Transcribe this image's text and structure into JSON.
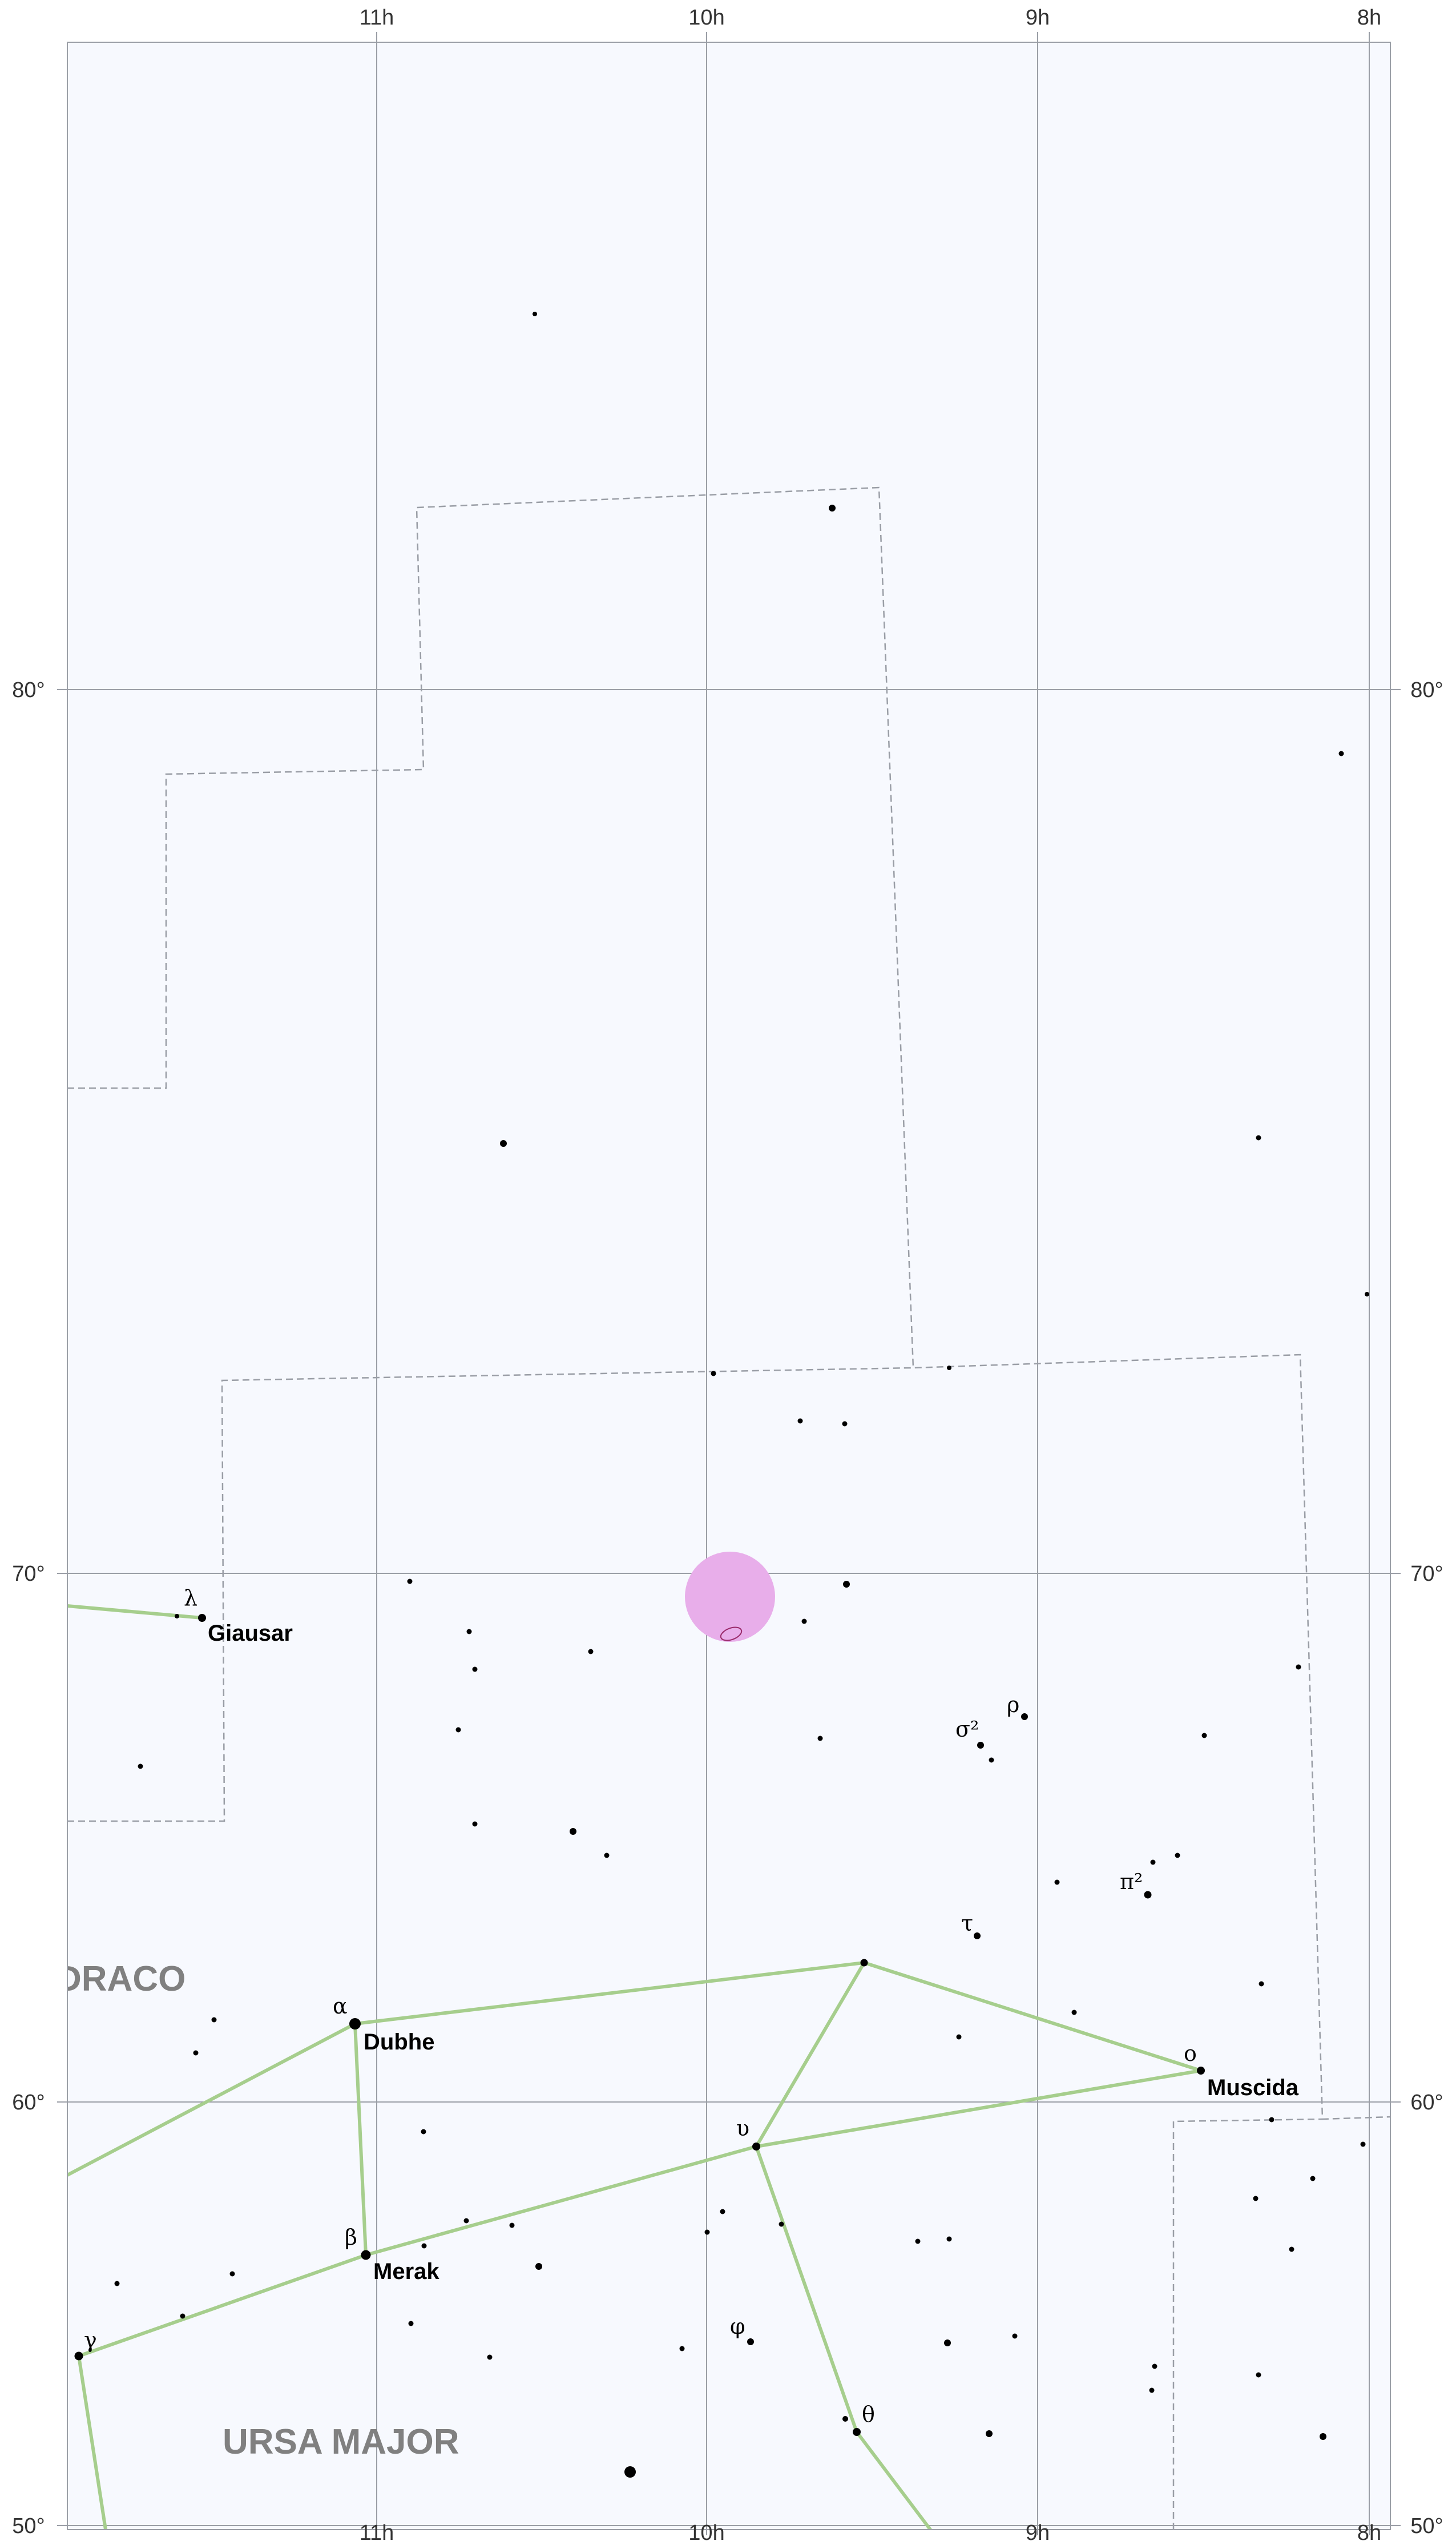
{
  "colors": {
    "background": "#f7f9fe",
    "grid": "#9a9ea6",
    "boundary": "#9a9ea6",
    "constellation_line": "#a6ce8d",
    "star": "#000000",
    "galaxy_highlight": "#e8aeea",
    "galaxy_outline": "#9a2a6a",
    "constellation_label": "#808080"
  },
  "axes": {
    "ra_labels_top": [
      "11h",
      "10h",
      "9h",
      "8h"
    ],
    "ra_labels_bottom": [
      "11h",
      "10h",
      "9h",
      "8h"
    ],
    "dec_labels_left": [
      "80°",
      "70°",
      "60°",
      "50°"
    ],
    "dec_labels_right": [
      "80°",
      "70°",
      "60°",
      "50°"
    ]
  },
  "constellations": [
    {
      "name": "DRACO"
    },
    {
      "name": "URSA MAJOR"
    }
  ],
  "named_stars": [
    {
      "greek": "α",
      "name": "Dubhe"
    },
    {
      "greek": "β",
      "name": "Merak"
    },
    {
      "greek": "λ",
      "name": "Giausar"
    },
    {
      "greek": "ο",
      "name": "Muscida"
    }
  ],
  "greek_labels": [
    {
      "greek": "γ"
    },
    {
      "greek": "υ"
    },
    {
      "greek": "φ"
    },
    {
      "greek": "θ"
    },
    {
      "greek": "τ"
    },
    {
      "greek": "π²"
    },
    {
      "greek": "σ²"
    },
    {
      "greek": "ρ"
    }
  ]
}
